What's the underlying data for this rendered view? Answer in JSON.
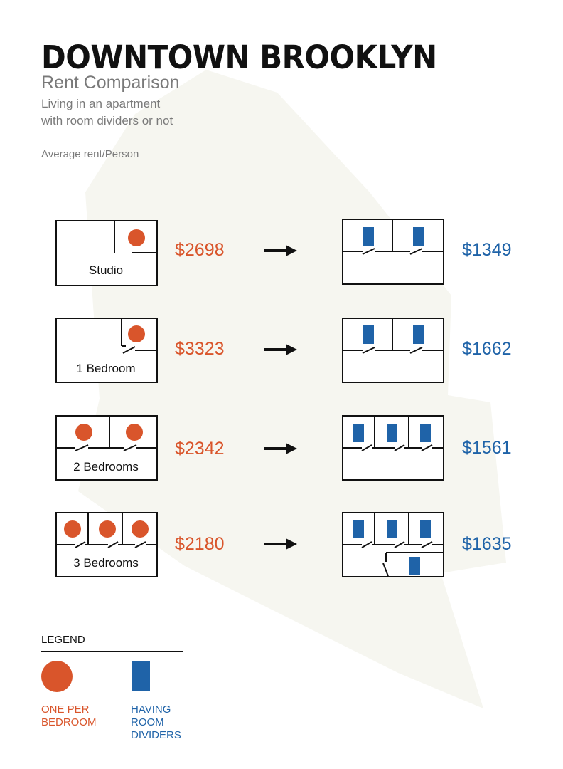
{
  "header": {
    "title": "DOWNTOWN BROOKLYN",
    "subtitle": "Rent Comparison",
    "description": "Living in an apartment\nwith room dividers or not",
    "metric_label": "Average rent/Person"
  },
  "colors": {
    "per_bedroom": "#d9552b",
    "room_dividers": "#1f63a8",
    "background_shape": "#f6f6f0",
    "lines": "#111111"
  },
  "rows": [
    {
      "label": "Studio",
      "price_before": "$2698",
      "price_after": "$1349"
    },
    {
      "label": "1 Bedroom",
      "price_before": "$3323",
      "price_after": "$1662"
    },
    {
      "label": "2 Bedrooms",
      "price_before": "$2342",
      "price_after": "$1561"
    },
    {
      "label": "3 Bedrooms",
      "price_before": "$2180",
      "price_after": "$1635"
    }
  ],
  "legend": {
    "title": "LEGEND",
    "per_bedroom_label": "ONE PER\nBEDROOM",
    "dividers_label": "HAVING\nROOM\nDIVIDERS"
  }
}
